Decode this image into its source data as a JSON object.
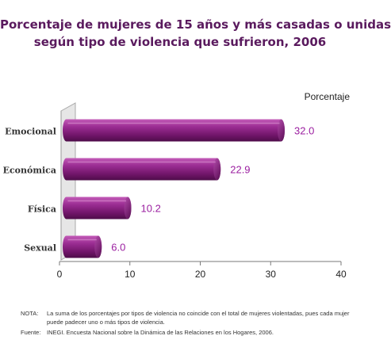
{
  "title": {
    "line1": "Porcentaje de mujeres de 15 años y más casadas o unidas",
    "line2": "según tipo de violencia que sufrieron, 2006"
  },
  "chart_data": {
    "type": "bar",
    "orientation": "horizontal",
    "title": "Porcentaje de mujeres de 15 años y más casadas o unidas según tipo de violencia que sufrieron, 2006",
    "value_label": "Porcentaje",
    "categories": [
      "Emocional",
      "Económica",
      "Física",
      "Sexual"
    ],
    "values": [
      32.0,
      22.9,
      10.2,
      6.0
    ],
    "value_labels": [
      "32.0",
      "22.9",
      "10.2",
      "6.0"
    ],
    "xlim": [
      0,
      40
    ],
    "xticks": [
      "0",
      "10",
      "20",
      "30",
      "40"
    ],
    "bar_color": "#7b1f74",
    "label_color": "#9b1fa0",
    "grid": false,
    "legend": "none",
    "style": "3d-cylinder"
  },
  "notes": [
    {
      "label": "NOTA:",
      "text": "La suma de los porcentajes por tipos de violencia no coincide con el total de mujeres violentadas, pues cada mujer puede padecer uno o más tipos de violencia."
    },
    {
      "label": "Fuente:",
      "text": "INEGI. Encuesta Nacional sobre la Dinámica de las Relaciones en los Hogares, 2006."
    }
  ]
}
